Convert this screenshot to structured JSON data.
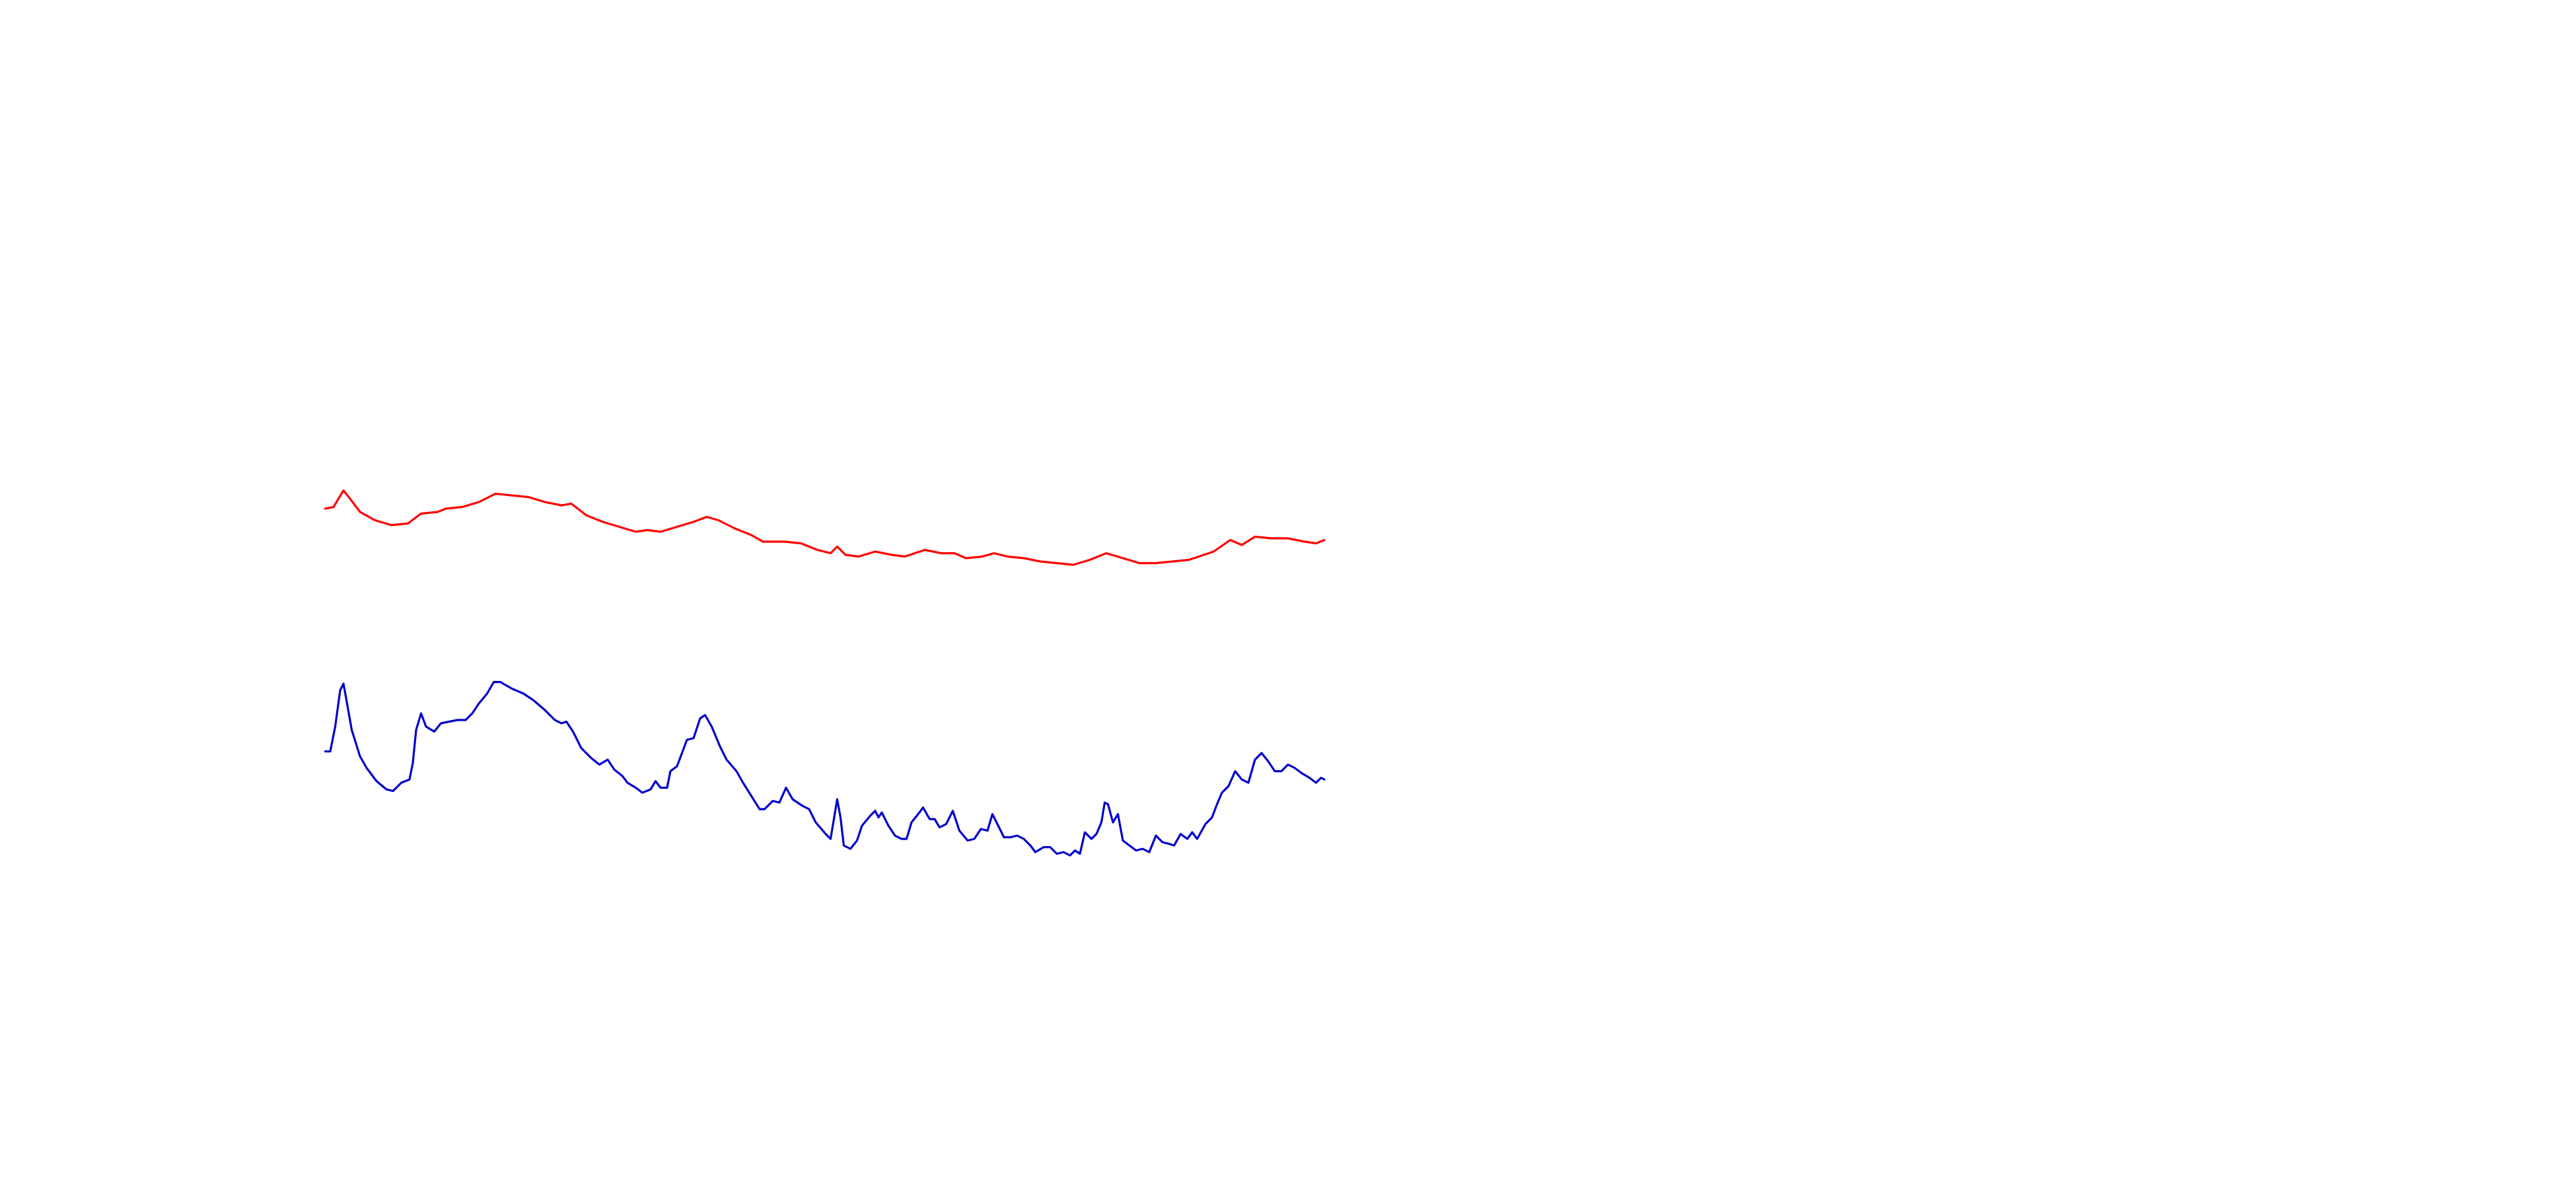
{
  "chart_data": [
    {
      "type": "line",
      "xlim": [
        0,
        605
      ],
      "ylim": [
        0,
        60
      ],
      "x": [
        0,
        5,
        11,
        15,
        21,
        30,
        40,
        50,
        58,
        68,
        73,
        83,
        93,
        103,
        113,
        123,
        133,
        143,
        149,
        158,
        168,
        178,
        188,
        195,
        203,
        213,
        223,
        231,
        238,
        248,
        258,
        265,
        278,
        288,
        298,
        306,
        310,
        315,
        323,
        333,
        343,
        351,
        363,
        373,
        381,
        388,
        398,
        405,
        413,
        423,
        433,
        443,
        453,
        463,
        473,
        483,
        493,
        503,
        513,
        523,
        538,
        548,
        555,
        563,
        573,
        583,
        593,
        600,
        605
      ],
      "series": [
        {
          "color": "#ff0000",
          "values": [
            42,
            43,
            53,
            48,
            40,
            35,
            32,
            33,
            39,
            40,
            42,
            43,
            46,
            51,
            50,
            49,
            46,
            44,
            45,
            38,
            34,
            31,
            28,
            29,
            28,
            31,
            34,
            37,
            35,
            30,
            26,
            22,
            22,
            21,
            17,
            15,
            19,
            14,
            13,
            16,
            14,
            13,
            17,
            15,
            15,
            12,
            13,
            15,
            13,
            12,
            10,
            9,
            8,
            11,
            15,
            12,
            9,
            9,
            10,
            11,
            16,
            23,
            20,
            25,
            24,
            24,
            22,
            21,
            23
          ]
        }
      ]
    },
    {
      "type": "line",
      "xlim": [
        0,
        605
      ],
      "ylim": [
        0,
        120
      ],
      "x": [
        0,
        3,
        6,
        9,
        11,
        13,
        16,
        21,
        25,
        31,
        37,
        41,
        46,
        51,
        53,
        55,
        58,
        61,
        66,
        70,
        75,
        80,
        85,
        89,
        93,
        98,
        102,
        106,
        113,
        120,
        126,
        133,
        139,
        143,
        146,
        150,
        155,
        161,
        166,
        171,
        175,
        180,
        183,
        188,
        192,
        197,
        200,
        203,
        207,
        209,
        213,
        216,
        219,
        223,
        227,
        230,
        234,
        239,
        243,
        249,
        253,
        258,
        263,
        266,
        271,
        275,
        279,
        283,
        289,
        293,
        297,
        303,
        306,
        310,
        312,
        314,
        318,
        322,
        325,
        330,
        333,
        335,
        337,
        341,
        345,
        349,
        352,
        355,
        359,
        362,
        366,
        369,
        372,
        376,
        380,
        384,
        389,
        393,
        397,
        401,
        404,
        407,
        411,
        415,
        419,
        423,
        427,
        430,
        435,
        439,
        443,
        447,
        451,
        454,
        457,
        460,
        464,
        467,
        470,
        472,
        474,
        477,
        480,
        483,
        487,
        491,
        495,
        499,
        503,
        507,
        511,
        514,
        518,
        522,
        525,
        528,
        533,
        537,
        540,
        543,
        547,
        551,
        555,
        559,
        563,
        567,
        571,
        575,
        579,
        583,
        587,
        591,
        596,
        600,
        603,
        605
      ],
      "series": [
        {
          "color": "#0000cc",
          "values": [
            75,
            75,
            90,
            112,
            116,
            105,
            88,
            72,
            65,
            57,
            52,
            51,
            56,
            58,
            68,
            88,
            98,
            90,
            87,
            92,
            93,
            94,
            94,
            98,
            104,
            110,
            117,
            117,
            113,
            110,
            106,
            100,
            94,
            92,
            93,
            87,
            77,
            71,
            67,
            70,
            64,
            60,
            56,
            53,
            50,
            52,
            57,
            53,
            53,
            63,
            66,
            74,
            82,
            83,
            95,
            97,
            90,
            78,
            70,
            63,
            56,
            48,
            40,
            40,
            45,
            44,
            53,
            46,
            42,
            40,
            32,
            25,
            22,
            46,
            35,
            18,
            16,
            21,
            30,
            36,
            39,
            35,
            38,
            30,
            24,
            22,
            22,
            32,
            37,
            41,
            34,
            34,
            29,
            31,
            39,
            27,
            21,
            22,
            28,
            27,
            37,
            31,
            23,
            23,
            24,
            22,
            18,
            14,
            17,
            17,
            13,
            14,
            12,
            15,
            13,
            26,
            22,
            25,
            32,
            44,
            43,
            32,
            37,
            21,
            18,
            15,
            16,
            14,
            24,
            20,
            19,
            18,
            25,
            22,
            26,
            22,
            31,
            35,
            43,
            50,
            54,
            63,
            58,
            56,
            70,
            74,
            69,
            63,
            63,
            67,
            65,
            62,
            59,
            56,
            59,
            58
          ]
        }
      ]
    }
  ]
}
